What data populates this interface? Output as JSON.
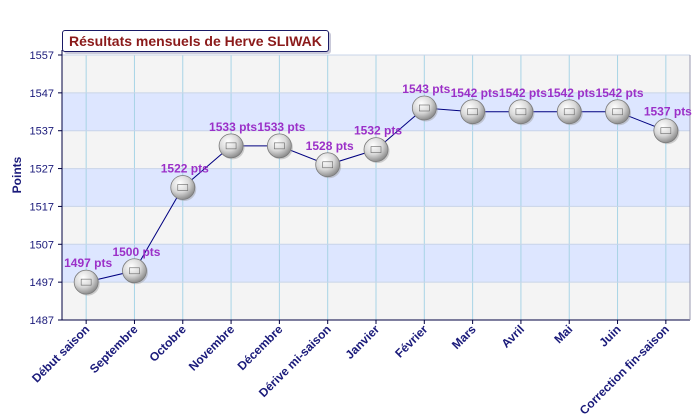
{
  "chart_data": {
    "type": "line",
    "title": "Résultats mensuels de Herve SLIWAK",
    "ylabel": "Points",
    "xlabel": "",
    "ylim": [
      1487,
      1557
    ],
    "yticks": [
      1487,
      1497,
      1507,
      1517,
      1527,
      1537,
      1547,
      1557
    ],
    "grid": true,
    "categories": [
      "Début saison",
      "Septembre",
      "Octobre",
      "Novembre",
      "Décembre",
      "Dérive mi-saison",
      "Janvier",
      "Février",
      "Mars",
      "Avril",
      "Mai",
      "Juin",
      "Correction fin-saison"
    ],
    "values": [
      1497,
      1500,
      1522,
      1533,
      1533,
      1528,
      1532,
      1543,
      1542,
      1542,
      1542,
      1542,
      1537
    ],
    "data_labels": [
      "1497 pts",
      "1500 pts",
      "1522 pts",
      "1533 pts",
      "1533 pts",
      "1528 pts",
      "1532 pts",
      "1543 pts",
      "1542 pts",
      "1542 pts",
      "1542 pts",
      "1542 pts",
      "1537 pts"
    ],
    "colors": {
      "line": "#000080",
      "data_label": "#9b30c8",
      "tick_label": "#1a1a7a",
      "band": "#dde6ff",
      "panel": "#f4f4f4",
      "grid": "#a8d4e6"
    }
  }
}
